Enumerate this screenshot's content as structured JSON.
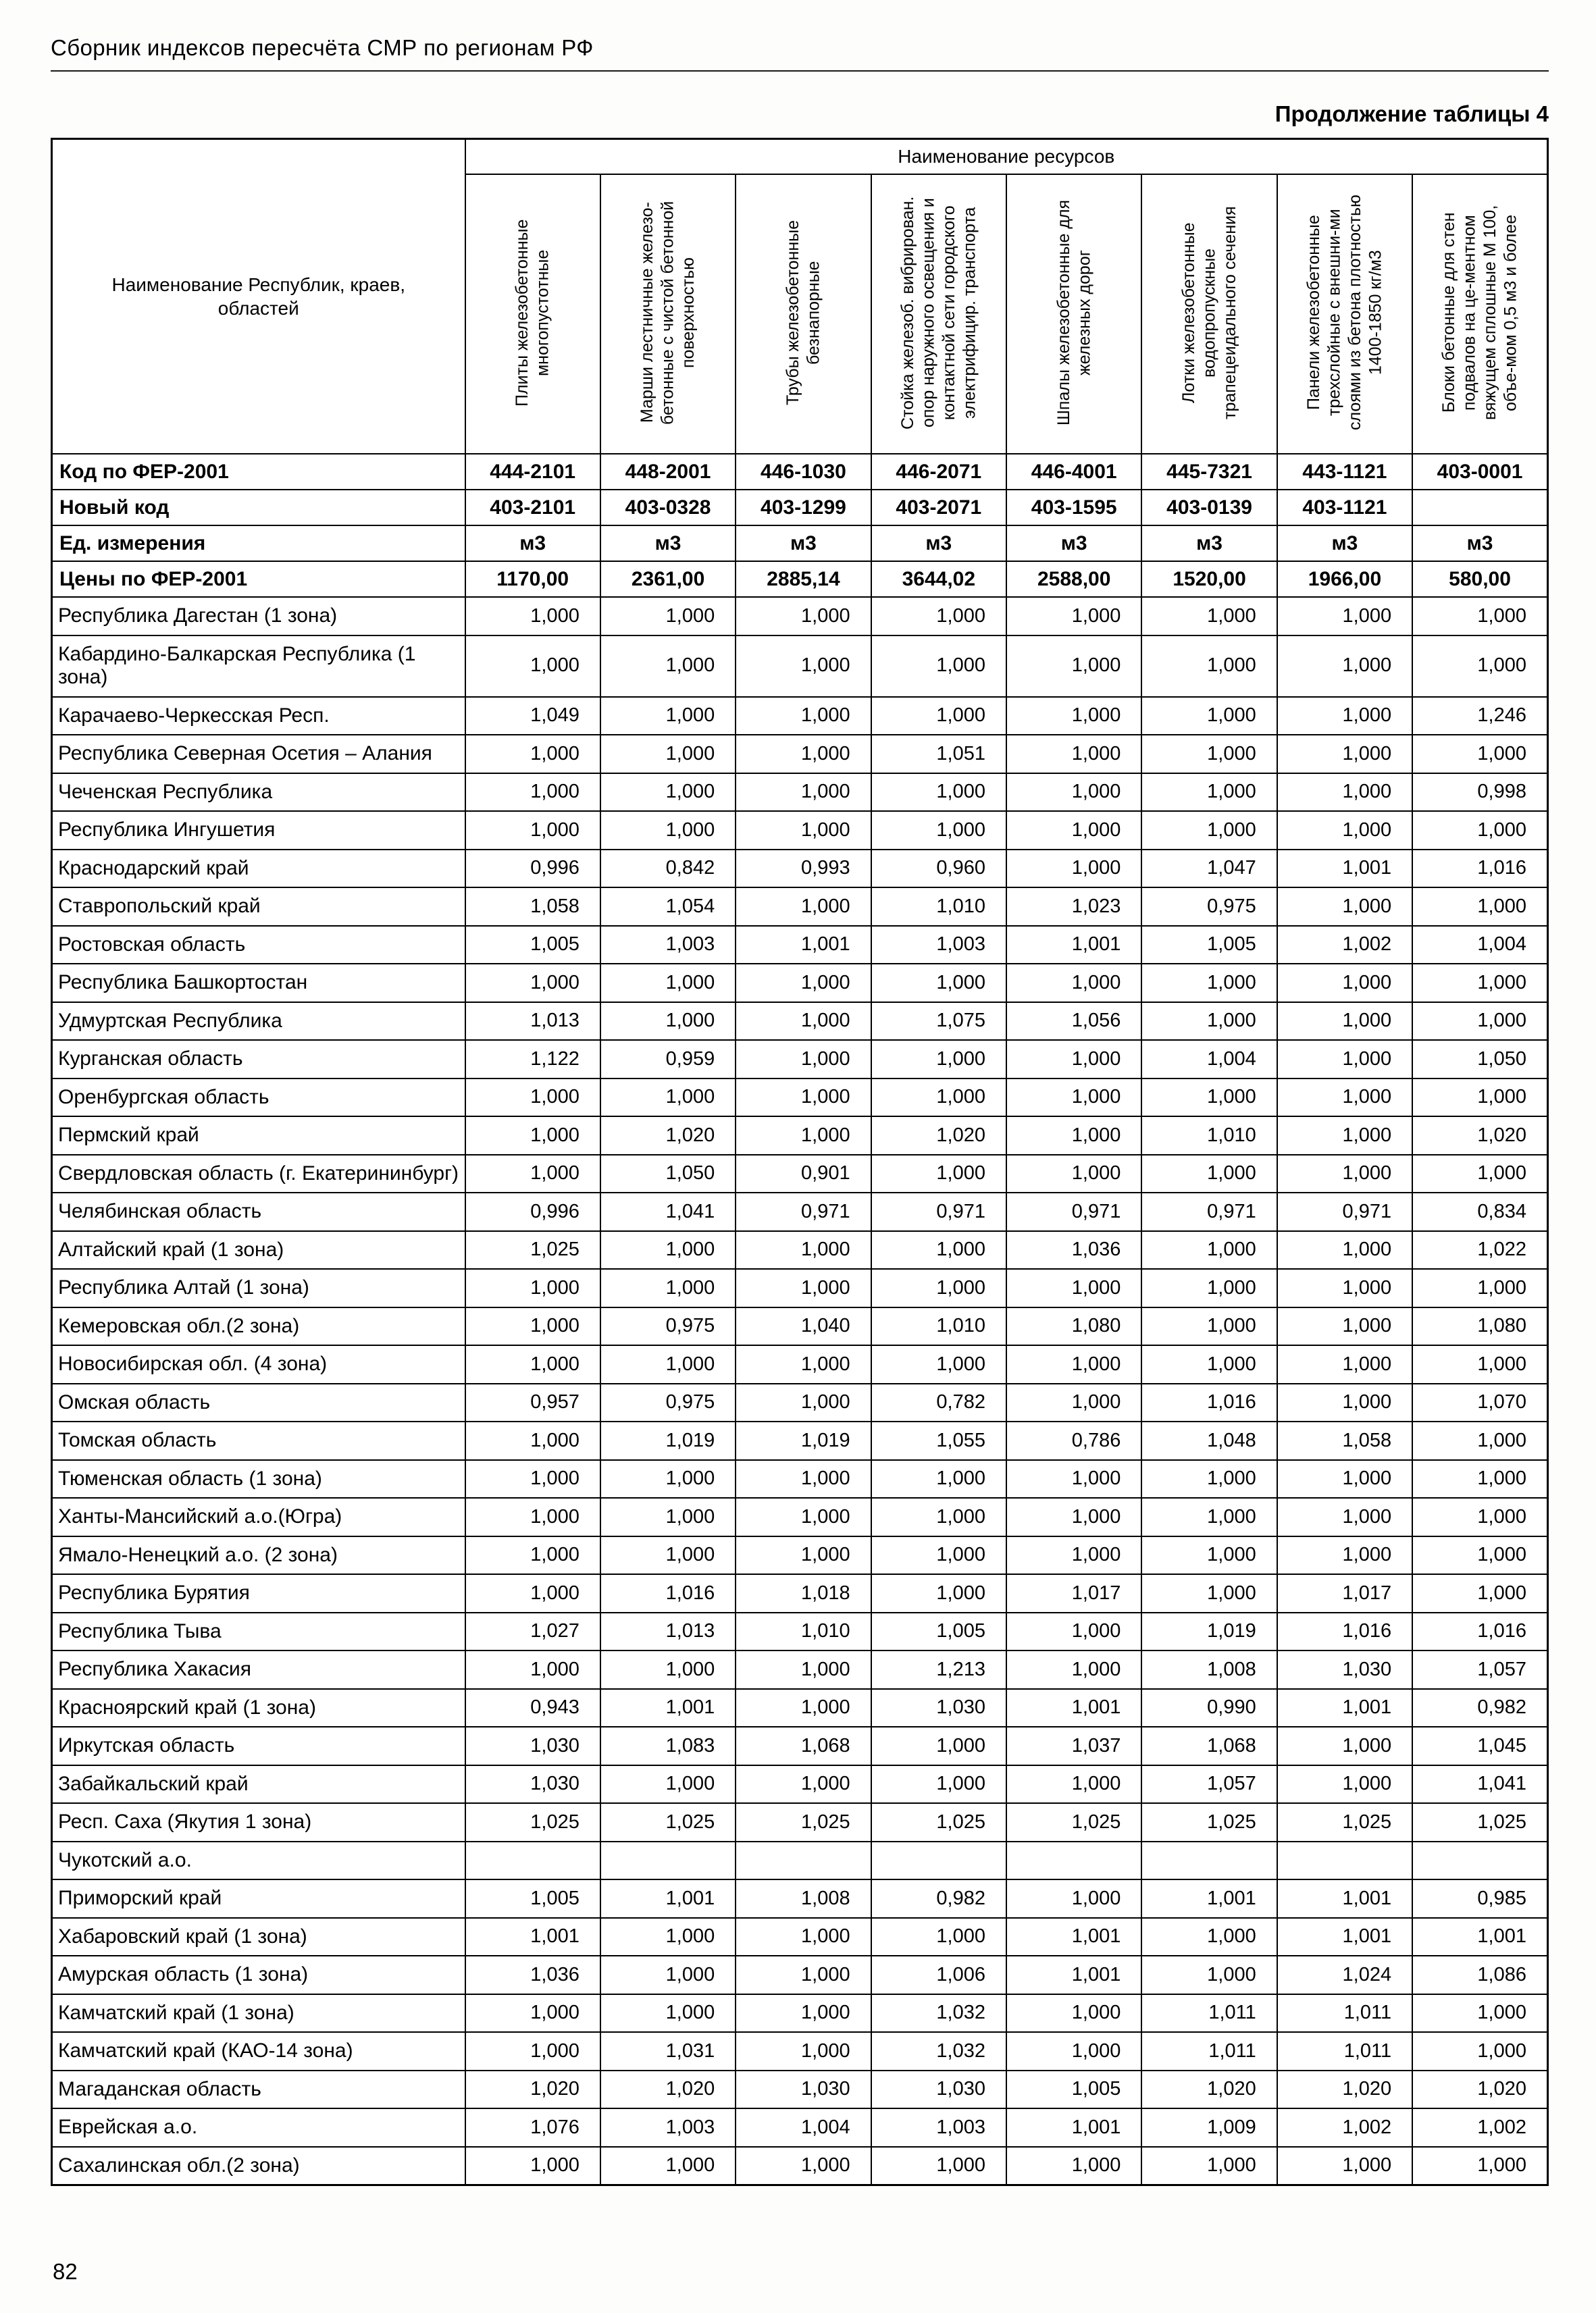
{
  "page": {
    "header": "Сборник индексов пересчёта СМР  по регионам РФ",
    "table_caption": "Продолжение таблицы 4",
    "page_number": "82"
  },
  "table": {
    "resources_header": "Наименование ресурсов",
    "first_col_header": "Наименование Республик, краев, областей",
    "columns": [
      "Плиты железобетонные многопустотные",
      "Марши лестничные железо-бетонные с чистой бетонной поверхностью",
      "Трубы железобетонные безнапорные",
      "Стойка железоб. вибрирован. опор наружного освещения и контактной сети городского электрифицир. транспорта",
      "Шпалы железобетонные для железных дорог",
      "Лотки железобетонные водопропускные трапецеидального сечения",
      "Панели железобетонные трехслойные с внешни-ми слоями из бетона плотностью 1400-1850 кг/м3",
      "Блоки бетонные для стен подвалов на це-ментном вяжущем сплошные М 100, объе-мом 0,5 м3 и более"
    ],
    "meta_rows": [
      {
        "label": "Код по ФЕР-2001",
        "values": [
          "444-2101",
          "448-2001",
          "446-1030",
          "446-2071",
          "446-4001",
          "445-7321",
          "443-1121",
          "403-0001"
        ]
      },
      {
        "label": "Новый код",
        "values": [
          "403-2101",
          "403-0328",
          "403-1299",
          "403-2071",
          "403-1595",
          "403-0139",
          "403-1121",
          ""
        ]
      },
      {
        "label": "Ед. измерения",
        "values": [
          "м3",
          "м3",
          "м3",
          "м3",
          "м3",
          "м3",
          "м3",
          "м3"
        ]
      },
      {
        "label": "Цены по ФЕР-2001",
        "values": [
          "1170,00",
          "2361,00",
          "2885,14",
          "3644,02",
          "2588,00",
          "1520,00",
          "1966,00",
          "580,00"
        ]
      }
    ],
    "rows": [
      {
        "name": "Республика Дагестан (1 зона)",
        "values": [
          "1,000",
          "1,000",
          "1,000",
          "1,000",
          "1,000",
          "1,000",
          "1,000",
          "1,000"
        ]
      },
      {
        "name": "Кабардино-Балкарская Республика (1 зона)",
        "values": [
          "1,000",
          "1,000",
          "1,000",
          "1,000",
          "1,000",
          "1,000",
          "1,000",
          "1,000"
        ]
      },
      {
        "name": "Карачаево-Черкесская Респ.",
        "values": [
          "1,049",
          "1,000",
          "1,000",
          "1,000",
          "1,000",
          "1,000",
          "1,000",
          "1,246"
        ]
      },
      {
        "name": "Республика Северная Осетия – Алания",
        "values": [
          "1,000",
          "1,000",
          "1,000",
          "1,051",
          "1,000",
          "1,000",
          "1,000",
          "1,000"
        ]
      },
      {
        "name": "Чеченская Республика",
        "values": [
          "1,000",
          "1,000",
          "1,000",
          "1,000",
          "1,000",
          "1,000",
          "1,000",
          "0,998"
        ]
      },
      {
        "name": "Республика Ингушетия",
        "values": [
          "1,000",
          "1,000",
          "1,000",
          "1,000",
          "1,000",
          "1,000",
          "1,000",
          "1,000"
        ]
      },
      {
        "name": "Краснодарский край",
        "values": [
          "0,996",
          "0,842",
          "0,993",
          "0,960",
          "1,000",
          "1,047",
          "1,001",
          "1,016"
        ]
      },
      {
        "name": "Ставропольский край",
        "values": [
          "1,058",
          "1,054",
          "1,000",
          "1,010",
          "1,023",
          "0,975",
          "1,000",
          "1,000"
        ]
      },
      {
        "name": "Ростовская область",
        "values": [
          "1,005",
          "1,003",
          "1,001",
          "1,003",
          "1,001",
          "1,005",
          "1,002",
          "1,004"
        ]
      },
      {
        "name": "Республика Башкортостан",
        "values": [
          "1,000",
          "1,000",
          "1,000",
          "1,000",
          "1,000",
          "1,000",
          "1,000",
          "1,000"
        ]
      },
      {
        "name": "Удмуртская Республика",
        "values": [
          "1,013",
          "1,000",
          "1,000",
          "1,075",
          "1,056",
          "1,000",
          "1,000",
          "1,000"
        ]
      },
      {
        "name": "Курганская область",
        "values": [
          "1,122",
          "0,959",
          "1,000",
          "1,000",
          "1,000",
          "1,004",
          "1,000",
          "1,050"
        ]
      },
      {
        "name": "Оренбургская область",
        "values": [
          "1,000",
          "1,000",
          "1,000",
          "1,000",
          "1,000",
          "1,000",
          "1,000",
          "1,000"
        ]
      },
      {
        "name": "Пермский край",
        "values": [
          "1,000",
          "1,020",
          "1,000",
          "1,020",
          "1,000",
          "1,010",
          "1,000",
          "1,020"
        ]
      },
      {
        "name": "Свердловская область (г. Екатерининбург)",
        "values": [
          "1,000",
          "1,050",
          "0,901",
          "1,000",
          "1,000",
          "1,000",
          "1,000",
          "1,000"
        ]
      },
      {
        "name": "Челябинская область",
        "values": [
          "0,996",
          "1,041",
          "0,971",
          "0,971",
          "0,971",
          "0,971",
          "0,971",
          "0,834"
        ]
      },
      {
        "name": "Алтайский край (1 зона)",
        "values": [
          "1,025",
          "1,000",
          "1,000",
          "1,000",
          "1,036",
          "1,000",
          "1,000",
          "1,022"
        ]
      },
      {
        "name": "Республика Алтай (1 зона)",
        "values": [
          "1,000",
          "1,000",
          "1,000",
          "1,000",
          "1,000",
          "1,000",
          "1,000",
          "1,000"
        ]
      },
      {
        "name": "Кемеровская обл.(2 зона)",
        "values": [
          "1,000",
          "0,975",
          "1,040",
          "1,010",
          "1,080",
          "1,000",
          "1,000",
          "1,080"
        ]
      },
      {
        "name": "Новосибирская обл. (4 зона)",
        "values": [
          "1,000",
          "1,000",
          "1,000",
          "1,000",
          "1,000",
          "1,000",
          "1,000",
          "1,000"
        ]
      },
      {
        "name": "Омская область",
        "values": [
          "0,957",
          "0,975",
          "1,000",
          "0,782",
          "1,000",
          "1,016",
          "1,000",
          "1,070"
        ]
      },
      {
        "name": "Томская область",
        "values": [
          "1,000",
          "1,019",
          "1,019",
          "1,055",
          "0,786",
          "1,048",
          "1,058",
          "1,000"
        ]
      },
      {
        "name": "Тюменская область (1 зона)",
        "values": [
          "1,000",
          "1,000",
          "1,000",
          "1,000",
          "1,000",
          "1,000",
          "1,000",
          "1,000"
        ]
      },
      {
        "name": "Ханты-Мансийский а.о.(Югра)",
        "values": [
          "1,000",
          "1,000",
          "1,000",
          "1,000",
          "1,000",
          "1,000",
          "1,000",
          "1,000"
        ]
      },
      {
        "name": "Ямало-Ненецкий а.о. (2 зона)",
        "values": [
          "1,000",
          "1,000",
          "1,000",
          "1,000",
          "1,000",
          "1,000",
          "1,000",
          "1,000"
        ]
      },
      {
        "name": "Республика Бурятия",
        "values": [
          "1,000",
          "1,016",
          "1,018",
          "1,000",
          "1,017",
          "1,000",
          "1,017",
          "1,000"
        ]
      },
      {
        "name": "Республика Тыва",
        "values": [
          "1,027",
          "1,013",
          "1,010",
          "1,005",
          "1,000",
          "1,019",
          "1,016",
          "1,016"
        ]
      },
      {
        "name": "Республика Хакасия",
        "values": [
          "1,000",
          "1,000",
          "1,000",
          "1,213",
          "1,000",
          "1,008",
          "1,030",
          "1,057"
        ]
      },
      {
        "name": "Красноярский край (1 зона)",
        "values": [
          "0,943",
          "1,001",
          "1,000",
          "1,030",
          "1,001",
          "0,990",
          "1,001",
          "0,982"
        ]
      },
      {
        "name": "Иркутская область",
        "values": [
          "1,030",
          "1,083",
          "1,068",
          "1,000",
          "1,037",
          "1,068",
          "1,000",
          "1,045"
        ]
      },
      {
        "name": "Забайкальский край",
        "values": [
          "1,030",
          "1,000",
          "1,000",
          "1,000",
          "1,000",
          "1,057",
          "1,000",
          "1,041"
        ]
      },
      {
        "name": "Респ. Саха (Якутия 1 зона)",
        "values": [
          "1,025",
          "1,025",
          "1,025",
          "1,025",
          "1,025",
          "1,025",
          "1,025",
          "1,025"
        ]
      },
      {
        "name": "Чукотский а.о.",
        "values": [
          "",
          "",
          "",
          "",
          "",
          "",
          "",
          ""
        ]
      },
      {
        "name": "Приморский край",
        "values": [
          "1,005",
          "1,001",
          "1,008",
          "0,982",
          "1,000",
          "1,001",
          "1,001",
          "0,985"
        ]
      },
      {
        "name": "Хабаровский край (1 зона)",
        "values": [
          "1,001",
          "1,000",
          "1,000",
          "1,000",
          "1,001",
          "1,000",
          "1,001",
          "1,001"
        ]
      },
      {
        "name": "Амурская область (1 зона)",
        "values": [
          "1,036",
          "1,000",
          "1,000",
          "1,006",
          "1,001",
          "1,000",
          "1,024",
          "1,086"
        ]
      },
      {
        "name": "Камчатский край (1 зона)",
        "values": [
          "1,000",
          "1,000",
          "1,000",
          "1,032",
          "1,000",
          "1,011",
          "1,011",
          "1,000"
        ]
      },
      {
        "name": "Камчатский край (КАО-14 зона)",
        "values": [
          "1,000",
          "1,031",
          "1,000",
          "1,032",
          "1,000",
          "1,011",
          "1,011",
          "1,000"
        ]
      },
      {
        "name": "Магаданская область",
        "values": [
          "1,020",
          "1,020",
          "1,030",
          "1,030",
          "1,005",
          "1,020",
          "1,020",
          "1,020"
        ]
      },
      {
        "name": "Еврейская а.о.",
        "values": [
          "1,076",
          "1,003",
          "1,004",
          "1,003",
          "1,001",
          "1,009",
          "1,002",
          "1,002"
        ]
      },
      {
        "name": "Сахалинская обл.(2 зона)",
        "values": [
          "1,000",
          "1,000",
          "1,000",
          "1,000",
          "1,000",
          "1,000",
          "1,000",
          "1,000"
        ]
      }
    ]
  }
}
